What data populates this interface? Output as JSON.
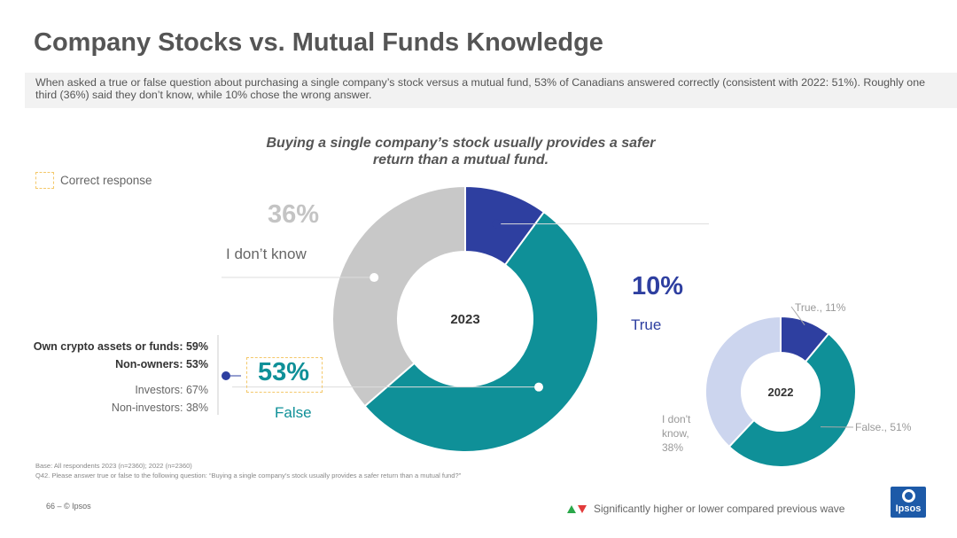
{
  "title": "Company Stocks vs. Mutual Funds Knowledge",
  "summary": "When asked a true or false question about purchasing a single company’s stock versus a mutual fund, 53% of Canadians answered correctly (consistent with 2022: 51%). Roughly one third (36%) said they don’t know, while 10% chose the wrong answer.",
  "legend": {
    "correct_response": "Correct response",
    "correct_color": "#f4c86a"
  },
  "colors": {
    "dont_know": "#c8c8c8",
    "true": "#2e3fa0",
    "false": "#0f9098",
    "dont_know_2022": "#ccd5ee"
  },
  "chart_data": [
    {
      "type": "pie",
      "title": "Buying a single company’s stock usually provides a safer return than a mutual fund.",
      "center_label": "2023",
      "slices": [
        {
          "label": "True",
          "value": 10,
          "display": "10%"
        },
        {
          "label": "False",
          "value": 53,
          "display": "53%"
        },
        {
          "label": "I don’t know",
          "value": 36,
          "display": "36%"
        }
      ],
      "subgroups": [
        {
          "label": "Own crypto assets or funds: 59%",
          "bold": true
        },
        {
          "label": "Non-owners: 53%",
          "bold": true
        },
        {
          "label": "Investors: 67%",
          "bold": false
        },
        {
          "label": "Non-investors: 38%",
          "bold": false
        }
      ]
    },
    {
      "type": "pie",
      "center_label": "2022",
      "slices": [
        {
          "label": "True.",
          "value": 11,
          "display": "True., 11%"
        },
        {
          "label": "False.",
          "value": 51,
          "display": "False., 51%"
        },
        {
          "label": "I don't know.",
          "value": 38,
          "display": "I don't know, 38%"
        }
      ]
    }
  ],
  "footer": {
    "base": "Base: All respondents 2023 (n=2360); 2022 (n=2360)",
    "question": "Q42. Please answer true or false to the following question: “Buying a single company’s stock usually provides a safer return than a mutual fund?”",
    "page": "66 –  © Ipsos",
    "significance": "Significantly higher or lower compared previous wave",
    "logo": "Ipsos"
  }
}
